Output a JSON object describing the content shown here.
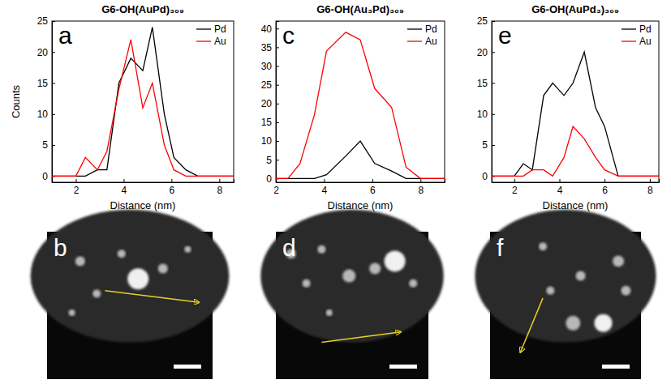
{
  "chart_data": [
    {
      "type": "line",
      "title": "G6-OH(AuPd)₃₀₉",
      "panel_label": "a",
      "x_label": "Distance (nm)",
      "y_label": "Counts",
      "x": [
        1,
        2.0,
        2.4,
        2.9,
        3.3,
        3.8,
        4.3,
        4.8,
        5.2,
        5.7,
        6.1,
        6.6,
        7.1,
        8.6
      ],
      "series": [
        {
          "name": "Pd",
          "color": "#000000",
          "values": [
            0,
            0,
            0,
            1,
            1,
            15,
            19,
            17,
            24,
            10,
            3,
            1,
            0,
            0
          ]
        },
        {
          "name": "Au",
          "color": "#ff0000",
          "values": [
            0,
            0,
            3,
            1,
            4,
            14,
            22,
            11,
            15,
            5,
            1,
            0,
            0,
            0
          ]
        }
      ],
      "xlim": [
        1,
        8.6
      ],
      "xticks": [
        2,
        4,
        6,
        8
      ],
      "ylim": [
        -1,
        25
      ],
      "yticks": [
        0,
        5,
        10,
        15,
        20,
        25
      ],
      "grid": false,
      "legend": "top-right"
    },
    {
      "type": "line",
      "title": "G6-OH(Au₃Pd)₃₀₉",
      "panel_label": "c",
      "x_label": "Distance (nm)",
      "x": [
        2,
        2.5,
        3.0,
        3.6,
        4.1,
        4.9,
        5.5,
        6.1,
        6.8,
        7.4,
        8.0,
        9
      ],
      "series": [
        {
          "name": "Pd",
          "color": "#000000",
          "values": [
            0,
            0,
            0,
            0,
            1,
            6,
            10,
            4,
            2,
            0,
            0,
            0
          ]
        },
        {
          "name": "Au",
          "color": "#ff0000",
          "values": [
            0,
            0,
            4,
            17,
            34,
            39,
            37,
            24,
            19,
            3,
            0,
            0
          ]
        }
      ],
      "xlim": [
        2,
        9
      ],
      "xticks": [
        2,
        4,
        6,
        8
      ],
      "ylim": [
        -1,
        42
      ],
      "yticks": [
        0,
        5,
        10,
        15,
        20,
        25,
        30,
        35,
        40
      ],
      "grid": false,
      "legend": "top-right"
    },
    {
      "type": "line",
      "title": "G6-OH(AuPd₃)₃₀₉",
      "panel_label": "e",
      "x_label": "Distance (nm)",
      "x": [
        1,
        2.0,
        2.4,
        2.8,
        3.3,
        3.7,
        4.2,
        4.6,
        5.1,
        5.6,
        6.0,
        6.6,
        8.4
      ],
      "series": [
        {
          "name": "Pd",
          "color": "#000000",
          "values": [
            0,
            0,
            2,
            1,
            13,
            15,
            13,
            15,
            20,
            11,
            8,
            0,
            0
          ]
        },
        {
          "name": "Au",
          "color": "#ff0000",
          "values": [
            0,
            0,
            0,
            1,
            1,
            0,
            3,
            8,
            6,
            3,
            1,
            0,
            0
          ]
        }
      ],
      "xlim": [
        1,
        8.4
      ],
      "xticks": [
        2,
        4,
        6,
        8
      ],
      "ylim": [
        -1,
        25
      ],
      "yticks": [
        0,
        5,
        10,
        15,
        20,
        25
      ],
      "grid": false,
      "legend": "top-right"
    }
  ],
  "images": [
    {
      "panel_label": "b"
    },
    {
      "panel_label": "d"
    },
    {
      "panel_label": "f"
    }
  ]
}
